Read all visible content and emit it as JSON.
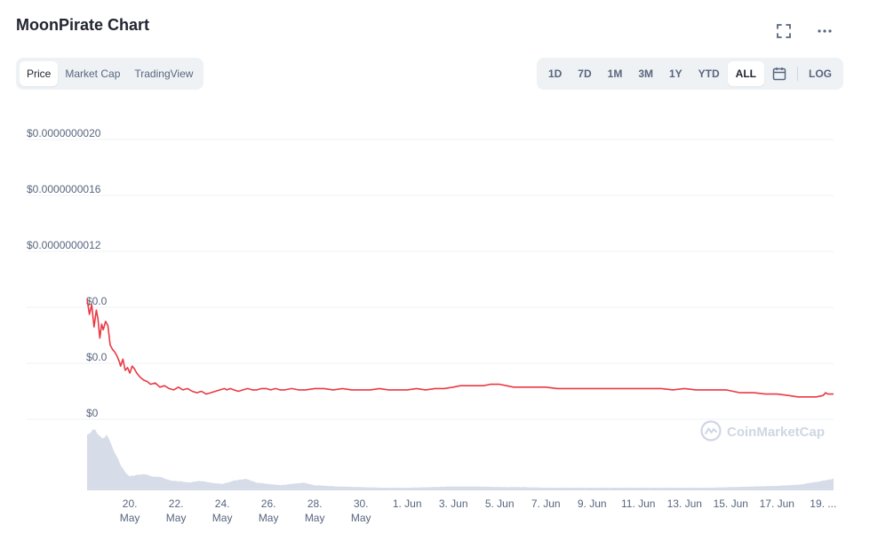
{
  "header": {
    "title": "MoonPirate Chart",
    "fullscreen_icon": "expand-icon",
    "more_icon": "more-horizontal-icon"
  },
  "tabs_left": [
    {
      "label": "Price",
      "active": true
    },
    {
      "label": "Market Cap",
      "active": false
    },
    {
      "label": "TradingView",
      "active": false
    }
  ],
  "ranges": [
    {
      "label": "1D",
      "active": false
    },
    {
      "label": "7D",
      "active": false
    },
    {
      "label": "1M",
      "active": false
    },
    {
      "label": "3M",
      "active": false
    },
    {
      "label": "1Y",
      "active": false
    },
    {
      "label": "YTD",
      "active": false
    },
    {
      "label": "ALL",
      "active": true
    }
  ],
  "calendar_icon": "calendar-icon",
  "log_label": "LOG",
  "watermark": "CoinMarketCap",
  "colors": {
    "line": "#ea3943",
    "volume": "#cfd6e4",
    "grid": "#eff2f5",
    "text": "#58667e"
  },
  "chart_data": {
    "type": "line",
    "y_tick_labels": [
      "$0.0000000020",
      "$0.0000000016",
      "$0.0000000012",
      "$0.0",
      "$0.0",
      "$0"
    ],
    "x_tick_labels": [
      [
        "20.",
        "May"
      ],
      [
        "22.",
        "May"
      ],
      [
        "24.",
        "May"
      ],
      [
        "26.",
        "May"
      ],
      [
        "28.",
        "May"
      ],
      [
        "30.",
        "May"
      ],
      [
        "1. Jun",
        ""
      ],
      [
        "3. Jun",
        ""
      ],
      [
        "5. Jun",
        ""
      ],
      [
        "7. Jun",
        ""
      ],
      [
        "9. Jun",
        ""
      ],
      [
        "11. Jun",
        ""
      ],
      [
        "13. Jun",
        ""
      ],
      [
        "15. Jun",
        ""
      ],
      [
        "17. Jun",
        ""
      ],
      [
        "19. ...",
        ""
      ]
    ],
    "x_tick_days": [
      20,
      22,
      24,
      26,
      28,
      30,
      32,
      34,
      36,
      38,
      40,
      42,
      44,
      46,
      48,
      50
    ],
    "x_domain_days": [
      18.15,
      50.45
    ],
    "y_domain": [
      0,
      2.0
    ],
    "y_unit_note": "values in units of 1e-9 USD",
    "price_series": {
      "x": [
        18.15,
        18.25,
        18.35,
        18.45,
        18.55,
        18.62,
        18.7,
        18.78,
        18.85,
        18.95,
        19.05,
        19.15,
        19.25,
        19.35,
        19.45,
        19.55,
        19.6,
        19.7,
        19.8,
        19.9,
        20.0,
        20.1,
        20.2,
        20.3,
        20.45,
        20.6,
        20.75,
        20.9,
        21.1,
        21.3,
        21.5,
        21.7,
        21.9,
        22.1,
        22.3,
        22.5,
        22.7,
        22.9,
        23.1,
        23.3,
        23.5,
        23.7,
        23.9,
        24.1,
        24.2,
        24.35,
        24.5,
        24.7,
        24.9,
        25.1,
        25.3,
        25.5,
        25.7,
        25.9,
        26.1,
        26.3,
        26.5,
        26.7,
        27.0,
        27.3,
        27.6,
        28.0,
        28.4,
        28.8,
        29.2,
        29.6,
        30.0,
        30.4,
        30.8,
        31.2,
        31.6,
        32.0,
        32.4,
        32.8,
        33.2,
        33.6,
        34.0,
        34.3,
        34.6,
        35.0,
        35.3,
        35.6,
        36.0,
        36.3,
        36.6,
        37.0,
        37.5,
        38.0,
        38.5,
        39.0,
        39.5,
        40.0,
        40.5,
        41.0,
        41.5,
        42.0,
        42.5,
        43.0,
        43.5,
        44.0,
        44.5,
        45.0,
        45.5,
        45.8,
        46.1,
        46.4,
        46.7,
        47.0,
        47.5,
        48.0,
        48.5,
        48.9,
        49.3,
        49.7,
        50.0,
        50.1,
        50.2,
        50.3,
        50.45
      ],
      "y": [
        0.86,
        0.75,
        0.82,
        0.66,
        0.78,
        0.72,
        0.58,
        0.68,
        0.64,
        0.7,
        0.67,
        0.53,
        0.5,
        0.48,
        0.45,
        0.41,
        0.38,
        0.43,
        0.35,
        0.37,
        0.33,
        0.38,
        0.36,
        0.33,
        0.3,
        0.28,
        0.27,
        0.25,
        0.26,
        0.23,
        0.24,
        0.22,
        0.21,
        0.23,
        0.21,
        0.22,
        0.2,
        0.19,
        0.2,
        0.18,
        0.19,
        0.2,
        0.21,
        0.22,
        0.21,
        0.22,
        0.21,
        0.2,
        0.21,
        0.22,
        0.21,
        0.21,
        0.22,
        0.22,
        0.21,
        0.22,
        0.21,
        0.21,
        0.22,
        0.21,
        0.21,
        0.22,
        0.22,
        0.21,
        0.22,
        0.21,
        0.21,
        0.21,
        0.22,
        0.21,
        0.21,
        0.21,
        0.22,
        0.21,
        0.22,
        0.22,
        0.23,
        0.24,
        0.24,
        0.24,
        0.24,
        0.25,
        0.25,
        0.24,
        0.23,
        0.23,
        0.23,
        0.23,
        0.22,
        0.22,
        0.22,
        0.22,
        0.22,
        0.22,
        0.22,
        0.22,
        0.22,
        0.22,
        0.21,
        0.22,
        0.21,
        0.21,
        0.21,
        0.21,
        0.2,
        0.19,
        0.19,
        0.19,
        0.18,
        0.18,
        0.17,
        0.16,
        0.16,
        0.16,
        0.17,
        0.19,
        0.18,
        0.18,
        0.18
      ]
    },
    "volume_series": {
      "x": [
        18.15,
        18.4,
        18.6,
        18.8,
        19.0,
        19.2,
        19.4,
        19.6,
        19.8,
        20.0,
        20.3,
        20.6,
        21.0,
        21.4,
        21.8,
        22.2,
        22.6,
        23.0,
        23.5,
        24.0,
        24.5,
        25.0,
        25.5,
        26.0,
        26.5,
        27.0,
        27.5,
        28.0,
        29.0,
        30.0,
        31.0,
        32.0,
        33.0,
        34.0,
        35.0,
        36.0,
        37.0,
        38.0,
        39.0,
        40.0,
        41.0,
        42.0,
        43.0,
        44.0,
        45.0,
        46.0,
        47.0,
        48.0,
        49.0,
        49.5,
        50.0,
        50.45
      ],
      "y": [
        0.85,
        0.95,
        0.9,
        0.8,
        0.88,
        0.7,
        0.55,
        0.4,
        0.28,
        0.22,
        0.24,
        0.25,
        0.22,
        0.2,
        0.15,
        0.14,
        0.12,
        0.15,
        0.12,
        0.1,
        0.15,
        0.18,
        0.12,
        0.1,
        0.08,
        0.1,
        0.12,
        0.08,
        0.06,
        0.05,
        0.04,
        0.04,
        0.05,
        0.06,
        0.06,
        0.05,
        0.05,
        0.04,
        0.04,
        0.04,
        0.04,
        0.04,
        0.04,
        0.04,
        0.04,
        0.05,
        0.06,
        0.07,
        0.09,
        0.12,
        0.15,
        0.18
      ]
    }
  }
}
